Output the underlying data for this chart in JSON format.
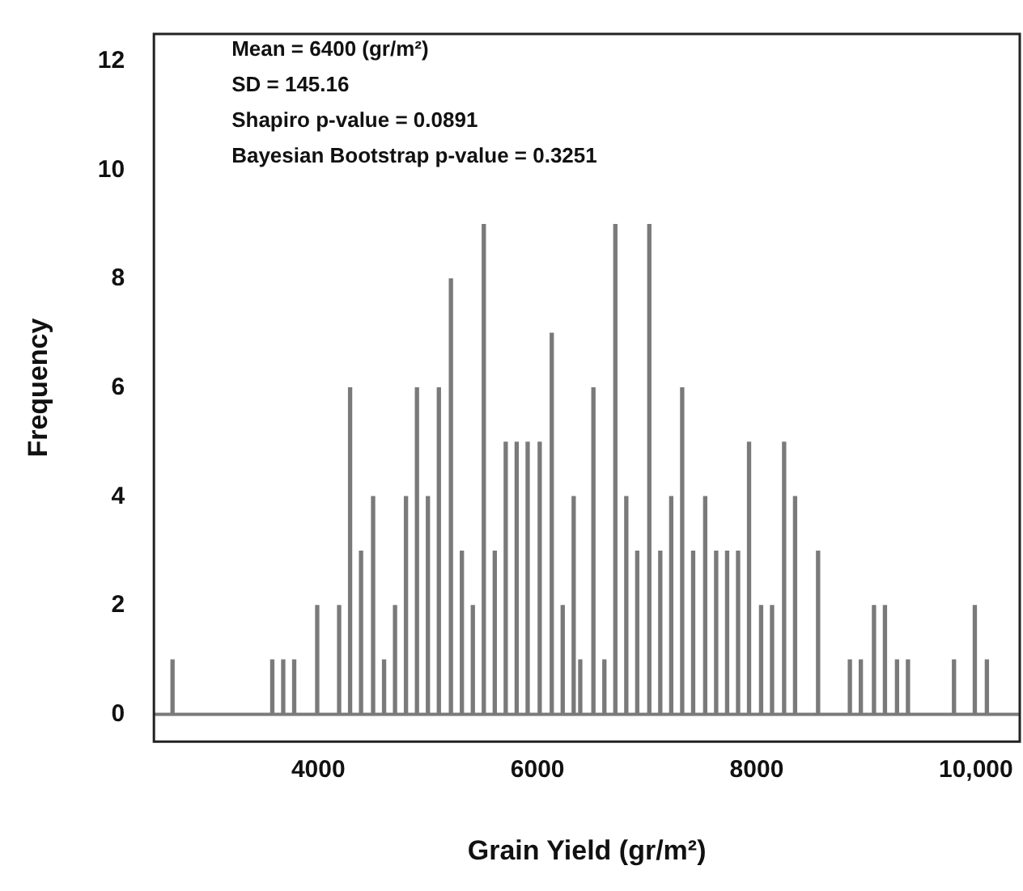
{
  "chart_data": {
    "type": "bar",
    "xlabel": "Grain Yield (gr/m²)",
    "ylabel": "Frequency",
    "x": [
      2670,
      3580,
      3680,
      3780,
      3990,
      4190,
      4290,
      4390,
      4500,
      4600,
      4700,
      4800,
      4900,
      5000,
      5100,
      5210,
      5310,
      5410,
      5510,
      5610,
      5710,
      5810,
      5910,
      6020,
      6130,
      6230,
      6330,
      6390,
      6510,
      6610,
      6710,
      6810,
      6910,
      7020,
      7120,
      7220,
      7320,
      7420,
      7530,
      7630,
      7730,
      7830,
      7930,
      8040,
      8140,
      8250,
      8350,
      8560,
      8850,
      8950,
      9070,
      9170,
      9280,
      9380,
      9800,
      9990,
      10100
    ],
    "values": [
      1,
      1,
      1,
      1,
      2,
      2,
      6,
      3,
      4,
      1,
      2,
      4,
      6,
      4,
      6,
      8,
      3,
      2,
      9,
      3,
      5,
      5,
      5,
      5,
      7,
      2,
      4,
      1,
      6,
      1,
      9,
      4,
      3,
      9,
      3,
      4,
      6,
      3,
      4,
      3,
      3,
      3,
      5,
      2,
      2,
      5,
      4,
      3,
      1,
      1,
      2,
      2,
      1,
      1,
      1,
      2,
      1
    ],
    "color": "#7a7a7a",
    "xlim": [
      2500,
      10400
    ],
    "xticks": [
      4000,
      6000,
      8000,
      {
        "value": 10000,
        "label": "10,000"
      }
    ],
    "ylim": [
      -0.5,
      12.5
    ],
    "yticks": [
      0,
      2,
      4,
      6,
      8,
      10,
      12
    ],
    "ref_lines": [
      {
        "axis": "y",
        "value": 0,
        "color": "#7a7a7a"
      }
    ],
    "grid": false,
    "legend": false,
    "annotations": [
      "Mean = 6400 (gr/m²)",
      "SD = 145.16",
      "Shapiro p-value = 0.0891",
      "Bayesian Bootstrap p-value = 0.3251"
    ]
  }
}
